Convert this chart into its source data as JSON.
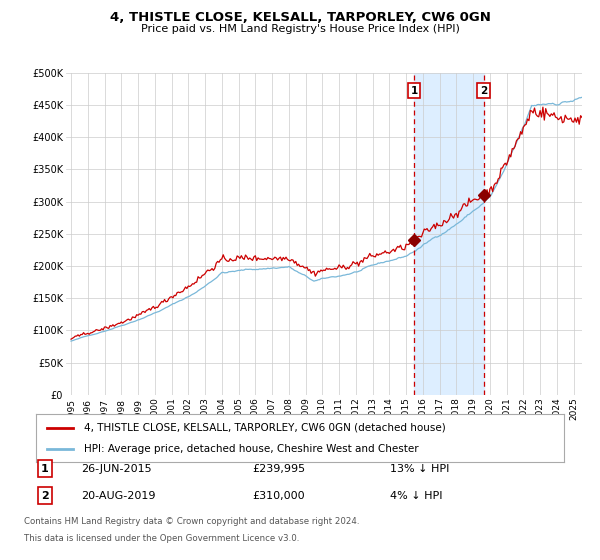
{
  "title": "4, THISTLE CLOSE, KELSALL, TARPORLEY, CW6 0GN",
  "subtitle": "Price paid vs. HM Land Registry's House Price Index (HPI)",
  "legend_line1": "4, THISTLE CLOSE, KELSALL, TARPORLEY, CW6 0GN (detached house)",
  "legend_line2": "HPI: Average price, detached house, Cheshire West and Chester",
  "sale1_date": "26-JUN-2015",
  "sale1_price": "£239,995",
  "sale1_hpi": "13% ↓ HPI",
  "sale1_label": "1",
  "sale1_year": 2015.48,
  "sale1_value": 239995,
  "sale2_date": "20-AUG-2019",
  "sale2_price": "£310,000",
  "sale2_hpi": "4% ↓ HPI",
  "sale2_label": "2",
  "sale2_year": 2019.63,
  "sale2_value": 310000,
  "footnote1": "Contains HM Land Registry data © Crown copyright and database right 2024.",
  "footnote2": "This data is licensed under the Open Government Licence v3.0.",
  "hpi_color": "#7ab8d9",
  "price_color": "#cc0000",
  "marker_color": "#8b0000",
  "shade_color": "#ddeeff",
  "dashed_color": "#cc0000",
  "grid_color": "#cccccc",
  "bg_color": "#ffffff",
  "xstart": 1995,
  "xend": 2025.5,
  "ymin": 0,
  "ymax": 500000
}
